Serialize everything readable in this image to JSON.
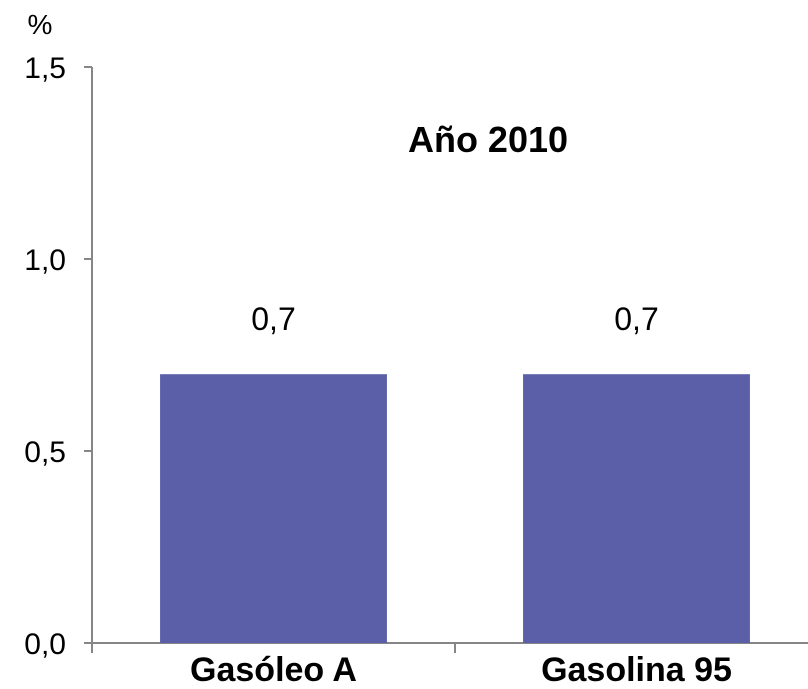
{
  "chart_data": {
    "type": "bar",
    "title": "Año 2010",
    "ylabel": "%",
    "xlabel": "",
    "categories": [
      "Gasóleo A",
      "Gasolina 95"
    ],
    "values": [
      0.7,
      0.7
    ],
    "value_labels": [
      "0,7",
      "0,7"
    ],
    "ylim": [
      0,
      1.5
    ],
    "yticks": [
      0,
      0.5,
      1.0,
      1.5
    ],
    "ytick_labels": [
      "0,0",
      "0,5",
      "1,0",
      "1,5"
    ],
    "grid": false,
    "legend": "none",
    "colors": {
      "bar": "#5A5FA8",
      "axis": "#868686"
    }
  }
}
